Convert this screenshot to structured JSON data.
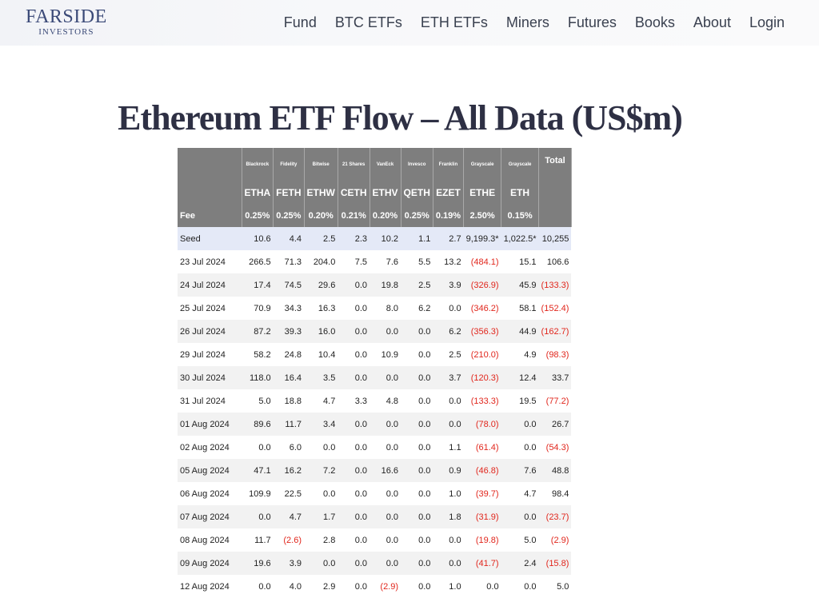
{
  "header": {
    "logo_main": "FARSIDE",
    "logo_sub": "INVESTORS",
    "nav": [
      "Fund",
      "BTC ETFs",
      "ETH ETFs",
      "Miners",
      "Futures",
      "Books",
      "About",
      "Login"
    ]
  },
  "page_title": "Ethereum ETF Flow – All Data (US$m)",
  "table": {
    "providers": [
      "Blackrock",
      "Fidelity",
      "Bitwise",
      "21 Shares",
      "VanEck",
      "Invesco",
      "Franklin",
      "Grayscale",
      "Grayscale"
    ],
    "total_label": "Total",
    "tickers": [
      "ETHA",
      "FETH",
      "ETHW",
      "CETH",
      "ETHV",
      "QETH",
      "EZET",
      "ETHE",
      "ETH"
    ],
    "fee_label": "Fee",
    "fees": [
      "0.25%",
      "0.25%",
      "0.20%",
      "0.21%",
      "0.20%",
      "0.25%",
      "0.19%",
      "2.50%",
      "0.15%"
    ],
    "rows": [
      {
        "date": "Seed",
        "vals": [
          "10.6",
          "4.4",
          "2.5",
          "2.3",
          "10.2",
          "1.1",
          "2.7",
          "9,199.3*",
          "1,022.5*"
        ],
        "total": "10,255"
      },
      {
        "date": "23 Jul 2024",
        "vals": [
          "266.5",
          "71.3",
          "204.0",
          "7.5",
          "7.6",
          "5.5",
          "13.2",
          "(484.1)",
          "15.1"
        ],
        "total": "106.6"
      },
      {
        "date": "24 Jul 2024",
        "vals": [
          "17.4",
          "74.5",
          "29.6",
          "0.0",
          "19.8",
          "2.5",
          "3.9",
          "(326.9)",
          "45.9"
        ],
        "total": "(133.3)"
      },
      {
        "date": "25 Jul 2024",
        "vals": [
          "70.9",
          "34.3",
          "16.3",
          "0.0",
          "8.0",
          "6.2",
          "0.0",
          "(346.2)",
          "58.1"
        ],
        "total": "(152.4)"
      },
      {
        "date": "26 Jul 2024",
        "vals": [
          "87.2",
          "39.3",
          "16.0",
          "0.0",
          "0.0",
          "0.0",
          "6.2",
          "(356.3)",
          "44.9"
        ],
        "total": "(162.7)"
      },
      {
        "date": "29 Jul 2024",
        "vals": [
          "58.2",
          "24.8",
          "10.4",
          "0.0",
          "10.9",
          "0.0",
          "2.5",
          "(210.0)",
          "4.9"
        ],
        "total": "(98.3)"
      },
      {
        "date": "30 Jul 2024",
        "vals": [
          "118.0",
          "16.4",
          "3.5",
          "0.0",
          "0.0",
          "0.0",
          "3.7",
          "(120.3)",
          "12.4"
        ],
        "total": "33.7"
      },
      {
        "date": "31 Jul 2024",
        "vals": [
          "5.0",
          "18.8",
          "4.7",
          "3.3",
          "4.8",
          "0.0",
          "0.0",
          "(133.3)",
          "19.5"
        ],
        "total": "(77.2)"
      },
      {
        "date": "01 Aug 2024",
        "vals": [
          "89.6",
          "11.7",
          "3.4",
          "0.0",
          "0.0",
          "0.0",
          "0.0",
          "(78.0)",
          "0.0"
        ],
        "total": "26.7"
      },
      {
        "date": "02 Aug 2024",
        "vals": [
          "0.0",
          "6.0",
          "0.0",
          "0.0",
          "0.0",
          "0.0",
          "1.1",
          "(61.4)",
          "0.0"
        ],
        "total": "(54.3)"
      },
      {
        "date": "05 Aug 2024",
        "vals": [
          "47.1",
          "16.2",
          "7.2",
          "0.0",
          "16.6",
          "0.0",
          "0.9",
          "(46.8)",
          "7.6"
        ],
        "total": "48.8"
      },
      {
        "date": "06 Aug 2024",
        "vals": [
          "109.9",
          "22.5",
          "0.0",
          "0.0",
          "0.0",
          "0.0",
          "1.0",
          "(39.7)",
          "4.7"
        ],
        "total": "98.4"
      },
      {
        "date": "07 Aug 2024",
        "vals": [
          "0.0",
          "4.7",
          "1.7",
          "0.0",
          "0.0",
          "0.0",
          "1.8",
          "(31.9)",
          "0.0"
        ],
        "total": "(23.7)"
      },
      {
        "date": "08 Aug 2024",
        "vals": [
          "11.7",
          "(2.6)",
          "2.8",
          "0.0",
          "0.0",
          "0.0",
          "0.0",
          "(19.8)",
          "5.0"
        ],
        "total": "(2.9)"
      },
      {
        "date": "09 Aug 2024",
        "vals": [
          "19.6",
          "3.9",
          "0.0",
          "0.0",
          "0.0",
          "0.0",
          "0.0",
          "(41.7)",
          "2.4"
        ],
        "total": "(15.8)"
      },
      {
        "date": "12 Aug 2024",
        "vals": [
          "0.0",
          "4.0",
          "2.9",
          "0.0",
          "(2.9)",
          "0.0",
          "1.0",
          "0.0",
          "0.0"
        ],
        "total": "5.0"
      }
    ]
  },
  "colors": {
    "header_bg": "#7e7e7e",
    "seed_row_bg": "#e4e9f7",
    "stripe_bg": "#f2f2f2",
    "negative": "#e1261c",
    "logo": "#3b4a78"
  }
}
